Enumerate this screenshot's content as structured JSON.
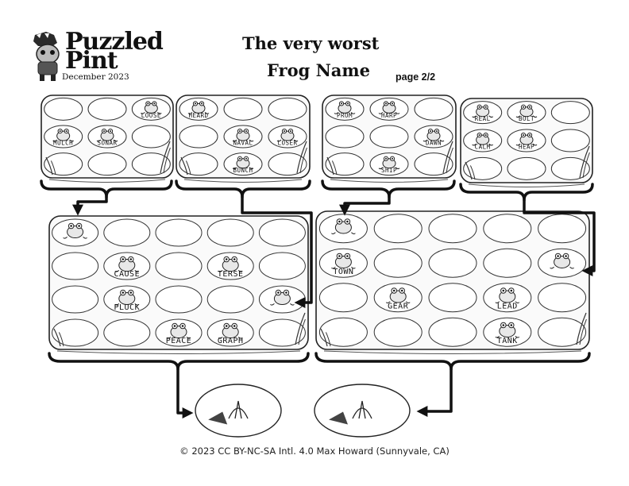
{
  "header": {
    "logo_line1": "Puzzled",
    "logo_line2": "Pint",
    "logo_date": "December 2023",
    "title_line1": "The very worst",
    "title_line2": "Frog Name",
    "page_label": "page 2/2"
  },
  "small_ponds": [
    {
      "frogs": [
        [
          "LOOSE",
          0,
          2
        ],
        [
          "MULCH",
          1,
          0
        ],
        [
          "SONAR",
          1,
          1
        ]
      ]
    },
    {
      "frogs": [
        [
          "HEARD",
          0,
          0
        ],
        [
          "NAVAL",
          1,
          1
        ],
        [
          "LOSER",
          1,
          2
        ],
        [
          "BUNCH",
          2,
          1
        ]
      ]
    },
    {
      "frogs": [
        [
          "PROM",
          0,
          0
        ],
        [
          "HARP",
          0,
          1
        ],
        [
          "DAWN",
          1,
          2
        ],
        [
          "SHIP",
          2,
          1
        ]
      ]
    },
    {
      "frogs": [
        [
          "REAL",
          0,
          0
        ],
        [
          "BOLT",
          0,
          1
        ],
        [
          "CALM",
          1,
          0
        ],
        [
          "HEAP",
          1,
          1
        ]
      ]
    }
  ],
  "large_ponds": [
    {
      "frogs": [
        [
          "",
          0,
          0
        ],
        [
          "CAUSE",
          1,
          1
        ],
        [
          "TERSE",
          1,
          3
        ],
        [
          "",
          2,
          4
        ],
        [
          "PLUCK",
          2,
          1
        ],
        [
          "PEACE",
          3,
          2
        ],
        [
          "GRAPH",
          3,
          3
        ]
      ]
    },
    {
      "frogs": [
        [
          "",
          0,
          0
        ],
        [
          "TOWN",
          1,
          0
        ],
        [
          "",
          1,
          4
        ],
        [
          "GEAR",
          2,
          1
        ],
        [
          "LEAD",
          2,
          3
        ],
        [
          "TANK",
          3,
          3
        ]
      ]
    }
  ],
  "footer": "© 2023 CC BY-NC-SA Intl. 4.0 Max Howard (Sunnyvale, CA)"
}
